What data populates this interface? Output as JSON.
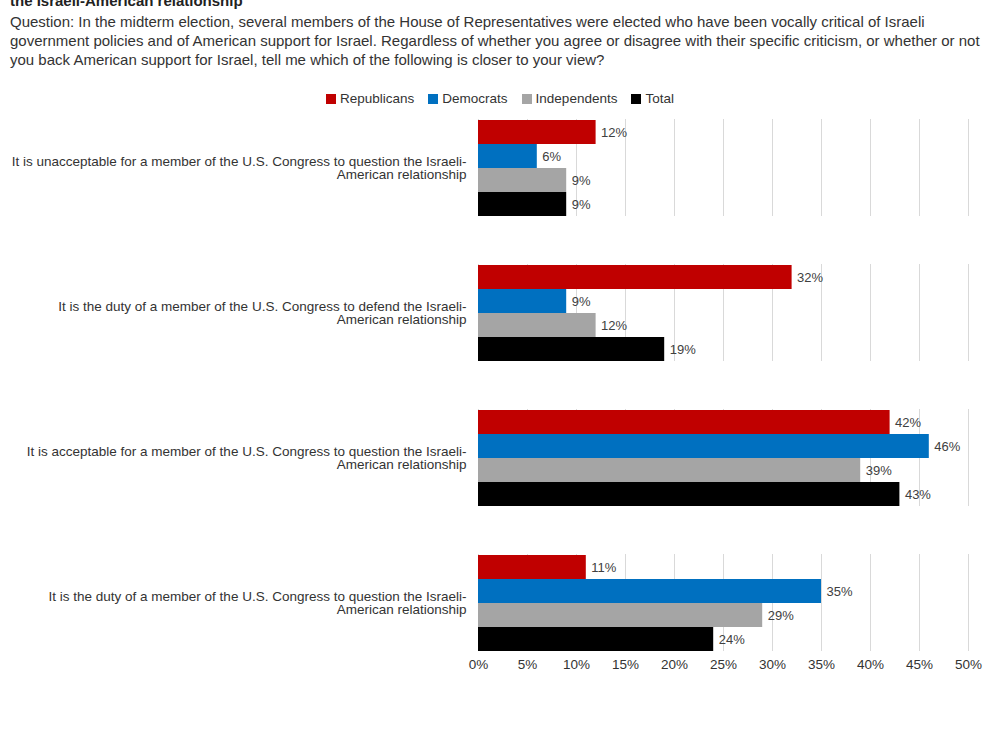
{
  "chart_data": {
    "type": "bar",
    "orientation": "horizontal",
    "title": "the Israeli-American relationship",
    "subtitle": "Question: In the midterm election, several members of the House of Representatives were elected who have been vocally critical of Israeli government policies and of American support for Israel. Regardless of whether you agree or disagree with their specific criticism, or whether or not you back American support for Israel, tell me which of the following is closer to your view?",
    "categories": [
      "It is unacceptable for a member of the U.S. Congress to question the Israeli-American relationship",
      "It is the duty of a member of the U.S. Congress to defend the Israeli-American relationship",
      "It is acceptable for a member of the U.S. Congress to question the Israeli-American relationship",
      "It is the duty of a member of the U.S. Congress to question the Israeli-American relationship"
    ],
    "series": [
      {
        "name": "Republicans",
        "color": "#c00000",
        "values": [
          12,
          32,
          42,
          11
        ],
        "value_labels": [
          "12%",
          "32%",
          "42%",
          "11%"
        ]
      },
      {
        "name": "Democrats",
        "color": "#0070c0",
        "values": [
          6,
          9,
          46,
          35
        ],
        "value_labels": [
          "6%",
          "9%",
          "46%",
          "35%"
        ]
      },
      {
        "name": "Independents",
        "color": "#a5a5a5",
        "values": [
          9,
          12,
          39,
          29
        ],
        "value_labels": [
          "9%",
          "12%",
          "39%",
          "29%"
        ]
      },
      {
        "name": "Total",
        "color": "#000000",
        "values": [
          9,
          19,
          43,
          24
        ],
        "value_labels": [
          "9%",
          "19%",
          "43%",
          "24%"
        ]
      }
    ],
    "xlim": [
      0,
      50
    ],
    "xticks": [
      {
        "value": 0,
        "label": "0%"
      },
      {
        "value": 5,
        "label": "5%"
      },
      {
        "value": 10,
        "label": "10%"
      },
      {
        "value": 15,
        "label": "15%"
      },
      {
        "value": 20,
        "label": "20%"
      },
      {
        "value": 25,
        "label": "25%"
      },
      {
        "value": 30,
        "label": "30%"
      },
      {
        "value": 35,
        "label": "35%"
      },
      {
        "value": 40,
        "label": "40%"
      },
      {
        "value": 45,
        "label": "45%"
      },
      {
        "value": 50,
        "label": "50%"
      }
    ],
    "grid": true,
    "legend": "top",
    "data_labels": true
  }
}
